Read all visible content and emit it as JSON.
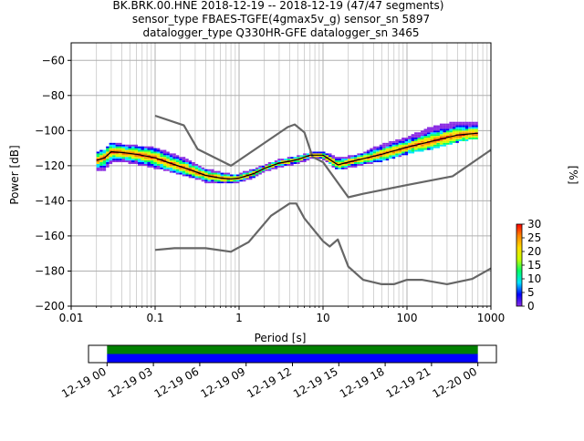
{
  "chart_data": [
    {
      "type": "heatmap",
      "title": "BK.BRK.00.HNE   2018-12-19 -- 2018-12-19  (47/47 segments)",
      "subtitle": [
        "sensor_type FBAES-TGFE(4gmax5v_g) sensor_sn 5897",
        "datalogger_type Q330HR-GFE datalogger_sn 3465"
      ],
      "xlabel": "Period [s]",
      "ylabel": "Power [dB]",
      "xscale": "log",
      "xlim": [
        0.01,
        1000
      ],
      "ylim": [
        -200,
        -50
      ],
      "x_ticks": [
        0.01,
        0.1,
        1,
        10,
        100,
        1000
      ],
      "x_tick_labels": [
        "0.01",
        "0.1",
        "1",
        "10",
        "100",
        "1000"
      ],
      "y_ticks": [
        -200,
        -180,
        -160,
        -140,
        -120,
        -100,
        -80,
        -60
      ],
      "y_tick_labels": [
        "−200",
        "−180",
        "−160",
        "−140",
        "−120",
        "−100",
        "−80",
        "−60"
      ],
      "grid": true,
      "colorbar": {
        "label": "[%]",
        "range": [
          0,
          30
        ],
        "ticks": [
          0,
          5,
          10,
          15,
          20,
          25,
          30
        ],
        "tick_labels": [
          "0",
          "5",
          "10",
          "15",
          "20",
          "25",
          "30"
        ]
      },
      "series": [
        {
          "role": "noise-model-high",
          "color": "#666666",
          "x": [
            0.1,
            0.22,
            0.32,
            0.8,
            3.8,
            4.6,
            6.0,
            7.5,
            10,
            20,
            30,
            100,
            350,
            1000
          ],
          "y": [
            -91.5,
            -97,
            -110.5,
            -120,
            -98,
            -96.5,
            -101,
            -115,
            -118,
            -138,
            -136,
            -131,
            -126,
            -111
          ]
        },
        {
          "role": "noise-model-low",
          "color": "#666666",
          "x": [
            0.1,
            0.17,
            0.4,
            0.8,
            1.3,
            2.4,
            4,
            4.8,
            6,
            10,
            12,
            15,
            20,
            30,
            50,
            70,
            100,
            150,
            300,
            600,
            1000
          ],
          "y": [
            -168,
            -167,
            -167,
            -169,
            -163.5,
            -148.5,
            -141.5,
            -141.5,
            -150,
            -163,
            -166,
            -162,
            -177.5,
            -185,
            -187.5,
            -187.5,
            -185,
            -185,
            -187.5,
            -184.5,
            -178.5
          ]
        },
        {
          "role": "mode",
          "color": "#000000",
          "x": [
            0.02,
            0.025,
            0.03,
            0.04,
            0.06,
            0.1,
            0.15,
            0.25,
            0.4,
            0.6,
            0.8,
            1,
            1.5,
            2,
            3,
            4,
            5,
            7,
            10,
            15,
            20,
            30,
            50,
            100,
            200,
            400,
            700
          ],
          "y": [
            -117,
            -115.5,
            -112,
            -112.5,
            -113.5,
            -115.5,
            -118.5,
            -122,
            -125.5,
            -127,
            -127.5,
            -127,
            -124.5,
            -121.5,
            -118.5,
            -117.5,
            -116.5,
            -114,
            -114,
            -119.5,
            -118,
            -116,
            -113.5,
            -109.5,
            -106,
            -102.5,
            -101.5
          ]
        }
      ],
      "ppsd_band": {
        "periods": [
          0.02,
          0.025,
          0.03,
          0.04,
          0.06,
          0.1,
          0.15,
          0.25,
          0.4,
          0.6,
          0.8,
          1,
          1.5,
          2,
          3,
          4,
          5,
          7,
          10,
          15,
          20,
          30,
          50,
          100,
          200,
          400,
          700
        ],
        "upper_db": [
          -113,
          -111,
          -107,
          -108,
          -109,
          -110,
          -113,
          -117,
          -122,
          -124,
          -125,
          -125,
          -122,
          -120,
          -117,
          -115.5,
          -115,
          -113,
          -112,
          -116,
          -115,
          -113,
          -108,
          -104,
          -98,
          -95,
          -95
        ],
        "lower_db": [
          -123,
          -122,
          -118,
          -117,
          -119,
          -121,
          -123,
          -126,
          -129,
          -130,
          -130,
          -129,
          -126.5,
          -123,
          -120.5,
          -119.5,
          -118.5,
          -116,
          -116,
          -122,
          -121,
          -119,
          -117,
          -113,
          -110,
          -106,
          -104
        ]
      }
    },
    {
      "type": "timeline",
      "x_tick_labels": [
        "12-19 00",
        "12-19 03",
        "12-19 06",
        "12-19 09",
        "12-19 12",
        "12-19 15",
        "12-19 18",
        "12-19 21",
        "12-20 00"
      ],
      "x_ticks_hours": [
        0,
        3,
        6,
        9,
        12,
        15,
        18,
        21,
        24
      ],
      "xlim_hours": [
        -1.2,
        25.2
      ],
      "coverage_hours": [
        0,
        24
      ],
      "bars": [
        {
          "color": "#008000",
          "start_hours": 0,
          "end_hours": 24
        },
        {
          "color": "#0000ff",
          "start_hours": 0,
          "end_hours": 24
        }
      ]
    }
  ]
}
